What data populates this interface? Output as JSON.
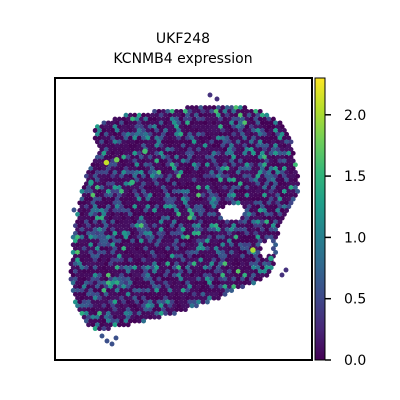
{
  "chart_data": {
    "type": "scatter",
    "title_lines": [
      "UKF248",
      "KCNMB4 expression"
    ],
    "sample": "UKF248",
    "gene": "KCNMB4",
    "xlabel": "",
    "ylabel": "",
    "grid": false,
    "legend": "colorbar-right",
    "colormap": "viridis",
    "color_range": [
      0.0,
      2.3
    ],
    "colorbar_ticks": [
      {
        "value": 0.0,
        "label": "0.0"
      },
      {
        "value": 0.5,
        "label": "0.5"
      },
      {
        "value": 1.0,
        "label": "1.0"
      },
      {
        "value": 1.5,
        "label": "1.5"
      },
      {
        "value": 2.0,
        "label": "2.0"
      }
    ],
    "points_note": "spatial spots (hex grid) coloured by expression; ~0 for most spots, scattered 0.5–1.5, a few ~2.0",
    "highlight_points": [
      {
        "x": 0.2,
        "y": 0.7,
        "value": 2.1
      },
      {
        "x": 0.24,
        "y": 0.71,
        "value": 1.8
      },
      {
        "x": 0.77,
        "y": 0.39,
        "value": 2.0
      },
      {
        "x": 0.3,
        "y": 0.63,
        "value": 1.5
      },
      {
        "x": 0.35,
        "y": 0.74,
        "value": 1.6
      },
      {
        "x": 0.84,
        "y": 0.36,
        "value": 1.3
      },
      {
        "x": 0.14,
        "y": 0.63,
        "value": 1.3
      },
      {
        "x": 0.27,
        "y": 0.45,
        "value": 1.2
      }
    ],
    "colors": {
      "viridis": [
        "#440154",
        "#482878",
        "#3e4989",
        "#31688e",
        "#26828e",
        "#1f9e89",
        "#35b779",
        "#6ece58",
        "#b5de2b",
        "#fde725"
      ],
      "frame": "#000000",
      "background": "#ffffff"
    }
  }
}
